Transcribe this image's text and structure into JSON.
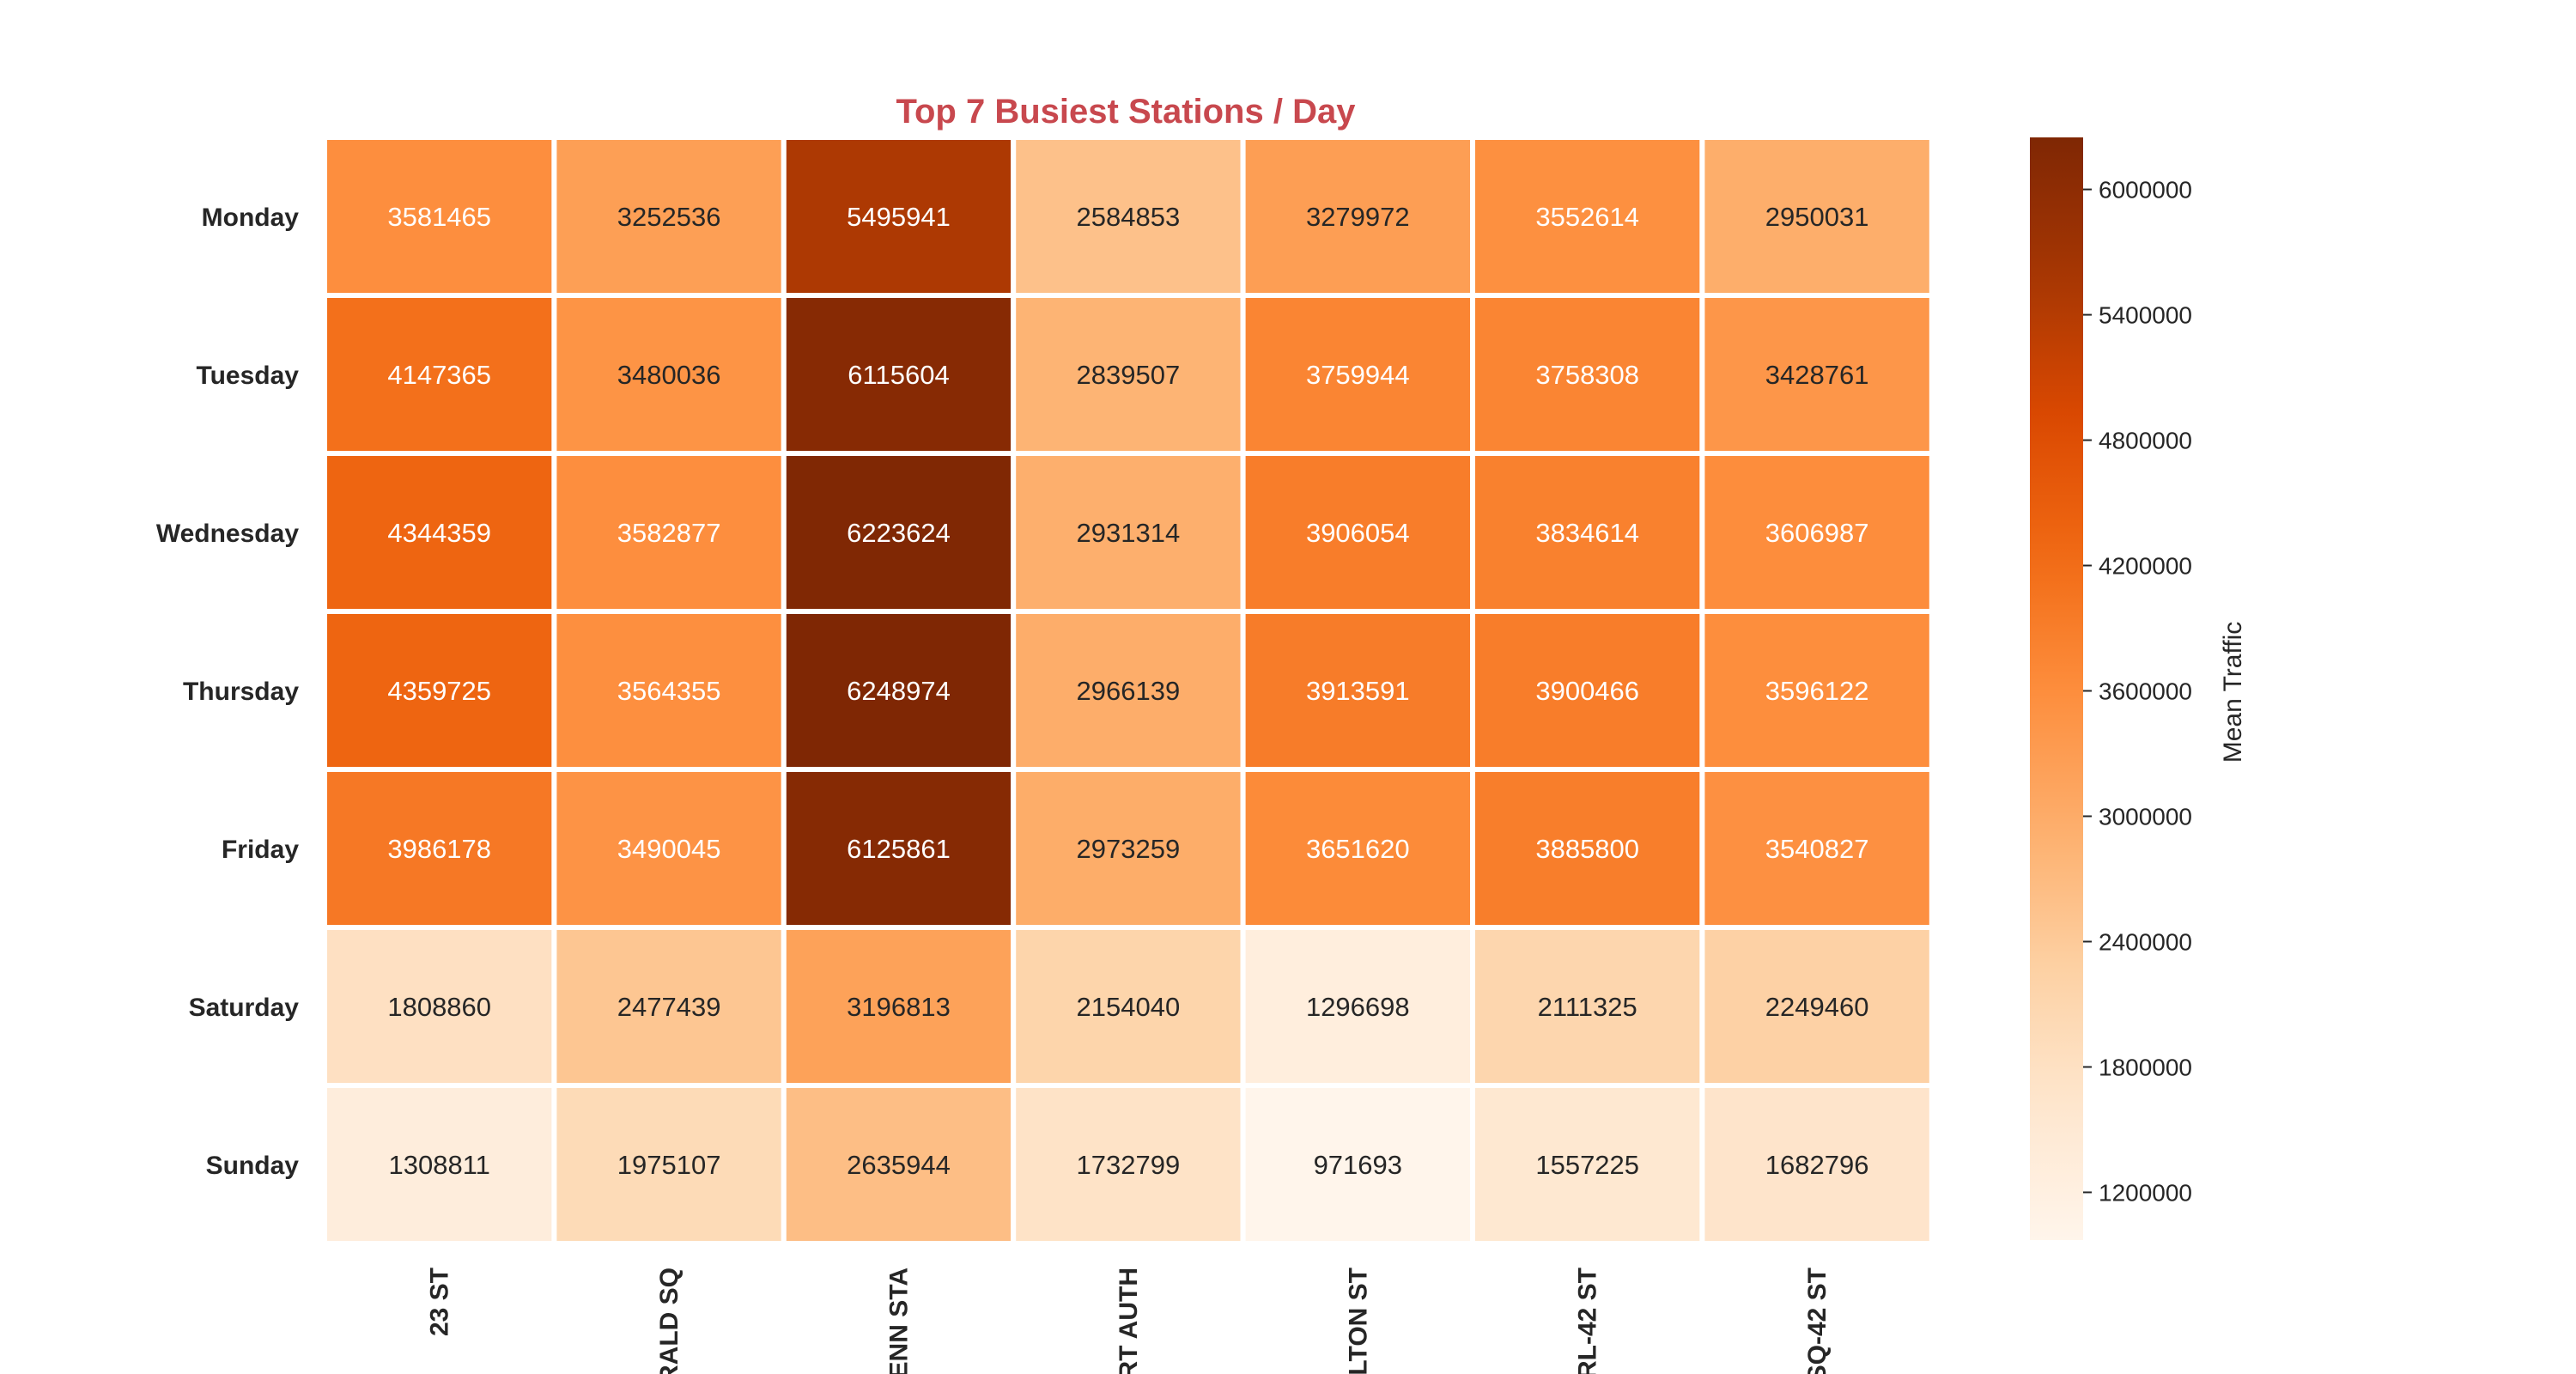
{
  "chart_data": {
    "type": "heatmap",
    "title": "Top 7 Busiest Stations / Day",
    "title_color": "#c8484e",
    "x_categories": [
      "23 ST",
      "RALD SQ",
      "ENN STA",
      "RT AUTH",
      "LTON ST",
      "RL-42 ST",
      "SQ-42 ST"
    ],
    "y_categories": [
      "Monday",
      "Tuesday",
      "Wednesday",
      "Thursday",
      "Friday",
      "Saturday",
      "Sunday"
    ],
    "values": [
      [
        3581465,
        3252536,
        5495941,
        2584853,
        3279972,
        3552614,
        2950031
      ],
      [
        4147365,
        3480036,
        6115604,
        2839507,
        3759944,
        3758308,
        3428761
      ],
      [
        4344359,
        3582877,
        6223624,
        2931314,
        3906054,
        3834614,
        3606987
      ],
      [
        4359725,
        3564355,
        6248974,
        2966139,
        3913591,
        3900466,
        3596122
      ],
      [
        3986178,
        3490045,
        6125861,
        2973259,
        3651620,
        3885800,
        3540827
      ],
      [
        1808860,
        2477439,
        3196813,
        2154040,
        1296698,
        2111325,
        2249460
      ],
      [
        1308811,
        1975107,
        2635944,
        1732799,
        971693,
        1557225,
        1682796
      ]
    ],
    "colormap": "Oranges",
    "colorbar": {
      "label": "Mean Traffic",
      "range": [
        971693,
        6248974
      ],
      "ticks": [
        1200000,
        1800000,
        2400000,
        3000000,
        3600000,
        4200000,
        4800000,
        5400000,
        6000000
      ]
    },
    "annotated": true,
    "grid": false
  }
}
